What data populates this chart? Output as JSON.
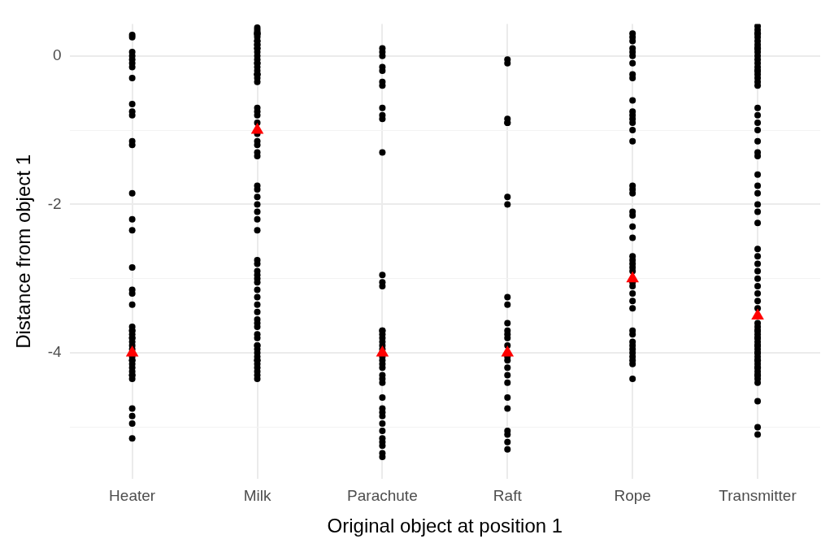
{
  "chart_data": {
    "type": "scatter",
    "xlabel": "Original object at position 1",
    "ylabel": "Distance from object 1",
    "categories": [
      "Heater",
      "Milk",
      "Parachute",
      "Raft",
      "Rope",
      "Transmitter"
    ],
    "ylim": [
      -5.7,
      0.43
    ],
    "yticks": [
      0,
      {
        "value": -1,
        "label": null
      },
      -2,
      {
        "value": -3,
        "label": null
      },
      -4,
      {
        "value": -5,
        "label": null
      }
    ],
    "grid": true,
    "legend": false,
    "series": [
      {
        "color": "#000000",
        "marker": "circle",
        "x": [
          "Heater",
          "Heater",
          "Heater",
          "Heater",
          "Heater",
          "Heater",
          "Heater",
          "Heater",
          "Heater",
          "Heater",
          "Heater",
          "Heater",
          "Heater",
          "Heater",
          "Heater",
          "Heater",
          "Heater",
          "Heater",
          "Heater",
          "Heater",
          "Heater",
          "Heater",
          "Heater",
          "Heater",
          "Heater",
          "Heater",
          "Heater",
          "Heater",
          "Heater",
          "Heater",
          "Heater",
          "Heater",
          "Heater",
          "Heater",
          "Heater",
          "Heater",
          "Heater",
          "Heater",
          "Heater",
          "Heater",
          "Heater",
          "Heater",
          "Milk",
          "Milk",
          "Milk",
          "Milk",
          "Milk",
          "Milk",
          "Milk",
          "Milk",
          "Milk",
          "Milk",
          "Milk",
          "Milk",
          "Milk",
          "Milk",
          "Milk",
          "Milk",
          "Milk",
          "Milk",
          "Milk",
          "Milk",
          "Milk",
          "Milk",
          "Milk",
          "Milk",
          "Milk",
          "Milk",
          "Milk",
          "Milk",
          "Milk",
          "Milk",
          "Milk",
          "Milk",
          "Milk",
          "Milk",
          "Milk",
          "Milk",
          "Milk",
          "Milk",
          "Milk",
          "Milk",
          "Milk",
          "Milk",
          "Milk",
          "Milk",
          "Milk",
          "Milk",
          "Milk",
          "Milk",
          "Milk",
          "Milk",
          "Milk",
          "Milk",
          "Milk",
          "Milk",
          "Milk",
          "Milk",
          "Milk",
          "Milk",
          "Milk",
          "Milk",
          "Milk",
          "Milk",
          "Milk",
          "Milk",
          "Milk",
          "Milk",
          "Milk",
          "Milk",
          "Parachute",
          "Parachute",
          "Parachute",
          "Parachute",
          "Parachute",
          "Parachute",
          "Parachute",
          "Parachute",
          "Parachute",
          "Parachute",
          "Parachute",
          "Parachute",
          "Parachute",
          "Parachute",
          "Parachute",
          "Parachute",
          "Parachute",
          "Parachute",
          "Parachute",
          "Parachute",
          "Parachute",
          "Parachute",
          "Parachute",
          "Parachute",
          "Parachute",
          "Parachute",
          "Parachute",
          "Parachute",
          "Parachute",
          "Parachute",
          "Parachute",
          "Parachute",
          "Parachute",
          "Parachute",
          "Parachute",
          "Parachute",
          "Parachute",
          "Parachute",
          "Parachute",
          "Raft",
          "Raft",
          "Raft",
          "Raft",
          "Raft",
          "Raft",
          "Raft",
          "Raft",
          "Raft",
          "Raft",
          "Raft",
          "Raft",
          "Raft",
          "Raft",
          "Raft",
          "Raft",
          "Raft",
          "Raft",
          "Raft",
          "Raft",
          "Raft",
          "Raft",
          "Raft",
          "Raft",
          "Raft",
          "Rope",
          "Rope",
          "Rope",
          "Rope",
          "Rope",
          "Rope",
          "Rope",
          "Rope",
          "Rope",
          "Rope",
          "Rope",
          "Rope",
          "Rope",
          "Rope",
          "Rope",
          "Rope",
          "Rope",
          "Rope",
          "Rope",
          "Rope",
          "Rope",
          "Rope",
          "Rope",
          "Rope",
          "Rope",
          "Rope",
          "Rope",
          "Rope",
          "Rope",
          "Rope",
          "Rope",
          "Rope",
          "Rope",
          "Rope",
          "Rope",
          "Rope",
          "Rope",
          "Rope",
          "Rope",
          "Rope",
          "Rope",
          "Rope",
          "Rope",
          "Transmitter",
          "Transmitter",
          "Transmitter",
          "Transmitter",
          "Transmitter",
          "Transmitter",
          "Transmitter",
          "Transmitter",
          "Transmitter",
          "Transmitter",
          "Transmitter",
          "Transmitter",
          "Transmitter",
          "Transmitter",
          "Transmitter",
          "Transmitter",
          "Transmitter",
          "Transmitter",
          "Transmitter",
          "Transmitter",
          "Transmitter",
          "Transmitter",
          "Transmitter",
          "Transmitter",
          "Transmitter",
          "Transmitter",
          "Transmitter",
          "Transmitter",
          "Transmitter",
          "Transmitter",
          "Transmitter",
          "Transmitter",
          "Transmitter",
          "Transmitter",
          "Transmitter",
          "Transmitter",
          "Transmitter",
          "Transmitter",
          "Transmitter",
          "Transmitter",
          "Transmitter",
          "Transmitter",
          "Transmitter",
          "Transmitter",
          "Transmitter",
          "Transmitter",
          "Transmitter",
          "Transmitter",
          "Transmitter",
          "Transmitter",
          "Transmitter",
          "Transmitter",
          "Transmitter",
          "Transmitter",
          "Transmitter",
          "Transmitter",
          "Transmitter",
          "Transmitter",
          "Transmitter",
          "Transmitter",
          "Transmitter",
          "Transmitter",
          "Transmitter",
          "Transmitter",
          "Transmitter",
          "Transmitter",
          "Transmitter",
          "Transmitter",
          "Transmitter"
        ],
        "values": [
          0.25,
          0.28,
          0.05,
          0,
          -0.05,
          -0.1,
          -0.15,
          -0.3,
          -0.65,
          -0.75,
          -0.8,
          -1.15,
          -1.2,
          -1.85,
          -2.2,
          -2.35,
          -2.85,
          -3.15,
          -3.2,
          -3.35,
          -3.65,
          -3.7,
          -3.75,
          -3.8,
          -3.85,
          -3.9,
          -3.95,
          -4.05,
          -4.1,
          -4.15,
          -4.2,
          -4.25,
          -4.3,
          -4.35,
          -3.7,
          -3.8,
          -4.1,
          -4.3,
          -4.75,
          -4.85,
          -4.95,
          -5.15,
          0.38,
          0.35,
          0.32,
          0.3,
          0.28,
          0.25,
          0.2,
          0.15,
          0.1,
          0.05,
          0,
          -0.05,
          -0.1,
          -0.15,
          -0.2,
          -0.25,
          -0.3,
          -0.35,
          0.3,
          0.2,
          0.1,
          -0.25,
          -0.7,
          -0.75,
          -0.8,
          -0.9,
          -1.05,
          -1.15,
          -1.2,
          -1.3,
          -1.35,
          -1.75,
          -1.8,
          -1.9,
          -2.0,
          -2.1,
          -2.2,
          -2.35,
          -2.75,
          -2.8,
          -2.9,
          -3.0,
          -3.05,
          -3.15,
          -3.25,
          -3.35,
          -3.45,
          -3.55,
          -3.6,
          -3.65,
          -3.75,
          -3.8,
          -3.9,
          -3.95,
          -4.0,
          -4.05,
          -4.1,
          -4.15,
          -4.2,
          -4.25,
          -4.3,
          -4.35,
          -3.9,
          -4.1,
          -2.95,
          -0.25,
          0.15,
          -0.1,
          0.1,
          0.05,
          0,
          -0.15,
          -0.2,
          -0.35,
          -0.4,
          -0.7,
          -0.8,
          -0.85,
          -1.3,
          -2.95,
          -3.05,
          -3.1,
          -3.7,
          -3.75,
          -3.8,
          -3.9,
          -3.95,
          -4.05,
          -4.1,
          -4.2,
          -4.3,
          -4.4,
          -4.6,
          -4.75,
          -4.85,
          -4.95,
          -5.05,
          -5.15,
          -5.25,
          -5.35,
          -5.4,
          -3.85,
          -4.15,
          -4.35,
          -4.8,
          -5.2,
          -3.7,
          -0.05,
          -0.1,
          -0.85,
          -0.9,
          -0.9,
          -1.9,
          -2.0,
          -3.25,
          -3.35,
          -3.6,
          -3.7,
          -3.75,
          -3.8,
          -3.9,
          -4.05,
          -4.1,
          -4.2,
          -4.3,
          -4.4,
          -4.6,
          -4.75,
          -5.05,
          -5.1,
          -5.2,
          -5.3,
          0.3,
          0.25,
          0.2,
          0.1,
          0.05,
          0,
          -0.1,
          -0.3,
          -0.25,
          -0.6,
          -0.75,
          -0.8,
          -0.85,
          -0.9,
          -1.0,
          -1.15,
          -1.75,
          -1.8,
          -1.85,
          -2.1,
          -2.15,
          -2.3,
          -2.45,
          -2.7,
          -2.75,
          -2.8,
          -2.85,
          -2.9,
          -3.05,
          -3.1,
          -3.2,
          -3.3,
          -3.4,
          -3.7,
          -3.75,
          -3.85,
          -3.9,
          -3.95,
          -4.0,
          -4.05,
          -4.1,
          -4.15,
          -4.35,
          0.4,
          0.35,
          0.3,
          0.25,
          0.2,
          0.15,
          0.1,
          0.05,
          0,
          -0.05,
          -0.1,
          -0.15,
          -0.2,
          -0.25,
          -0.3,
          -0.35,
          -0.4,
          -0.7,
          -0.8,
          -0.9,
          -1.0,
          -1.15,
          -1.3,
          -1.35,
          -1.6,
          -1.75,
          -1.85,
          -2.0,
          -2.1,
          -2.25,
          -2.6,
          -2.7,
          -2.8,
          -2.9,
          -3.0,
          -3.1,
          -3.2,
          -3.3,
          -3.4,
          -3.6,
          -3.65,
          -3.7,
          -3.75,
          -3.8,
          -3.85,
          -3.9,
          -3.95,
          -4.0,
          -4.05,
          -4.1,
          -4.15,
          -4.2,
          -4.25,
          -4.3,
          -4.35,
          -4.4,
          -3.7,
          -3.8,
          -3.9,
          -4.0,
          -4.1,
          -4.2,
          -4.3,
          -4.65,
          -5.0,
          -5.1,
          0.3,
          0.1,
          -0.2
        ]
      },
      {
        "color": "#ff0000",
        "marker": "triangle",
        "x": [
          "Heater",
          "Milk",
          "Parachute",
          "Raft",
          "Rope",
          "Transmitter"
        ],
        "values": [
          -4,
          -1,
          -4,
          -4,
          -3,
          -3.5
        ]
      }
    ]
  }
}
